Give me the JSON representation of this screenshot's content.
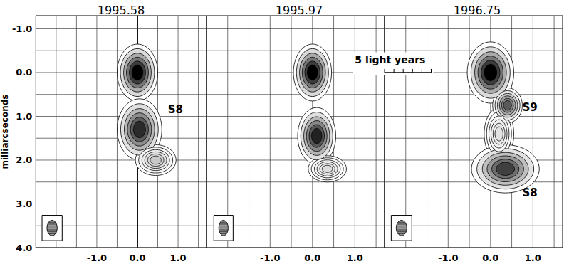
{
  "chart_data": [
    {
      "type": "contour",
      "title": "1995.58",
      "xlim": [
        -2.5,
        1.7
      ],
      "ylim": [
        4.0,
        -1.3
      ],
      "xticks": [
        {
          "value": -1,
          "label": "-1.0"
        },
        {
          "value": 0,
          "label": "0.0"
        },
        {
          "value": 1,
          "label": "1.0"
        }
      ],
      "yticks": [
        {
          "value": -1,
          "label": "-1.0"
        },
        {
          "value": 0,
          "label": "0.0"
        },
        {
          "value": 1,
          "label": "1.0"
        },
        {
          "value": 2,
          "label": "2.0"
        },
        {
          "value": 3,
          "label": "3.0"
        },
        {
          "value": 4,
          "label": "4.0"
        }
      ],
      "ylabel": "milliarcseconds",
      "grid": true,
      "components": [
        {
          "x": 0.0,
          "y": 0.0,
          "size": [
            1.0,
            1.3
          ],
          "color": "#000000"
        },
        {
          "x": 0.05,
          "y": 1.3,
          "size": [
            1.1,
            1.4
          ],
          "color": "#2a2a2a"
        },
        {
          "x": 0.45,
          "y": 2.0,
          "size": [
            1.0,
            0.7
          ],
          "color": "#c8c8c8"
        }
      ],
      "annotations": [
        {
          "text": "S8",
          "x": 0.75,
          "y": 0.85
        }
      ],
      "beam": {
        "x": -2.1,
        "y": 3.55,
        "size": [
          0.25,
          0.35
        ]
      }
    },
    {
      "type": "contour",
      "title": "1995.97",
      "xlim": [
        -2.5,
        1.7
      ],
      "ylim": [
        4.0,
        -1.3
      ],
      "xticks": [
        {
          "value": -1,
          "label": "-1.0"
        },
        {
          "value": 0,
          "label": "0.0"
        },
        {
          "value": 1,
          "label": "1.0"
        }
      ],
      "yticks": [
        {
          "value": -1,
          "label": "-1.0"
        },
        {
          "value": 0,
          "label": "0.0"
        },
        {
          "value": 1,
          "label": "1.0"
        },
        {
          "value": 2,
          "label": "2.0"
        },
        {
          "value": 3,
          "label": "3.0"
        },
        {
          "value": 4,
          "label": "4.0"
        }
      ],
      "grid": true,
      "tick_labels": "x",
      "components": [
        {
          "x": 0.0,
          "y": 0.0,
          "size": [
            0.9,
            1.3
          ],
          "color": "#000000"
        },
        {
          "x": 0.1,
          "y": 1.45,
          "size": [
            0.9,
            1.3
          ],
          "color": "#222222"
        },
        {
          "x": 0.35,
          "y": 2.2,
          "size": [
            0.9,
            0.6
          ],
          "color": "#dddddd"
        }
      ],
      "scale_bar": {
        "label": "5 light years",
        "label_x": 1.0,
        "label_y": -0.3,
        "x": [
          1.7,
          2.8
        ],
        "y": 0.0
      },
      "beam": {
        "x": -2.1,
        "y": 3.55,
        "size": [
          0.22,
          0.35
        ]
      }
    },
    {
      "type": "contour",
      "title": "1996.75",
      "xlim": [
        -2.5,
        1.7
      ],
      "ylim": [
        4.0,
        -1.3
      ],
      "xticks": [
        {
          "value": -1,
          "label": "-1.0"
        },
        {
          "value": 0,
          "label": "0.0"
        },
        {
          "value": 1,
          "label": "1.0"
        }
      ],
      "yticks": [
        {
          "value": -1,
          "label": "-1.0"
        },
        {
          "value": 0,
          "label": "0.0"
        },
        {
          "value": 1,
          "label": "1.0"
        },
        {
          "value": 2,
          "label": "2.0"
        },
        {
          "value": 3,
          "label": "3.0"
        },
        {
          "value": 4,
          "label": "4.0"
        }
      ],
      "grid": true,
      "tick_labels": "x",
      "components": [
        {
          "x": 0.2,
          "y": 1.4,
          "size": [
            0.7,
            1.2
          ],
          "color": "#e2e2e2"
        },
        {
          "x": 0.0,
          "y": 0.0,
          "size": [
            1.1,
            1.4
          ],
          "color": "#000000"
        },
        {
          "x": 0.4,
          "y": 0.75,
          "size": [
            0.7,
            0.8
          ],
          "color": "#5a5a5a"
        },
        {
          "x": 0.35,
          "y": 2.2,
          "size": [
            1.6,
            1.1
          ],
          "color": "#404040"
        }
      ],
      "annotations": [
        {
          "text": "S9",
          "x": 0.75,
          "y": 0.8
        },
        {
          "text": "S8",
          "x": 0.75,
          "y": 2.75
        }
      ],
      "beam": {
        "x": -2.1,
        "y": 3.55,
        "size": [
          0.25,
          0.35
        ]
      }
    }
  ]
}
